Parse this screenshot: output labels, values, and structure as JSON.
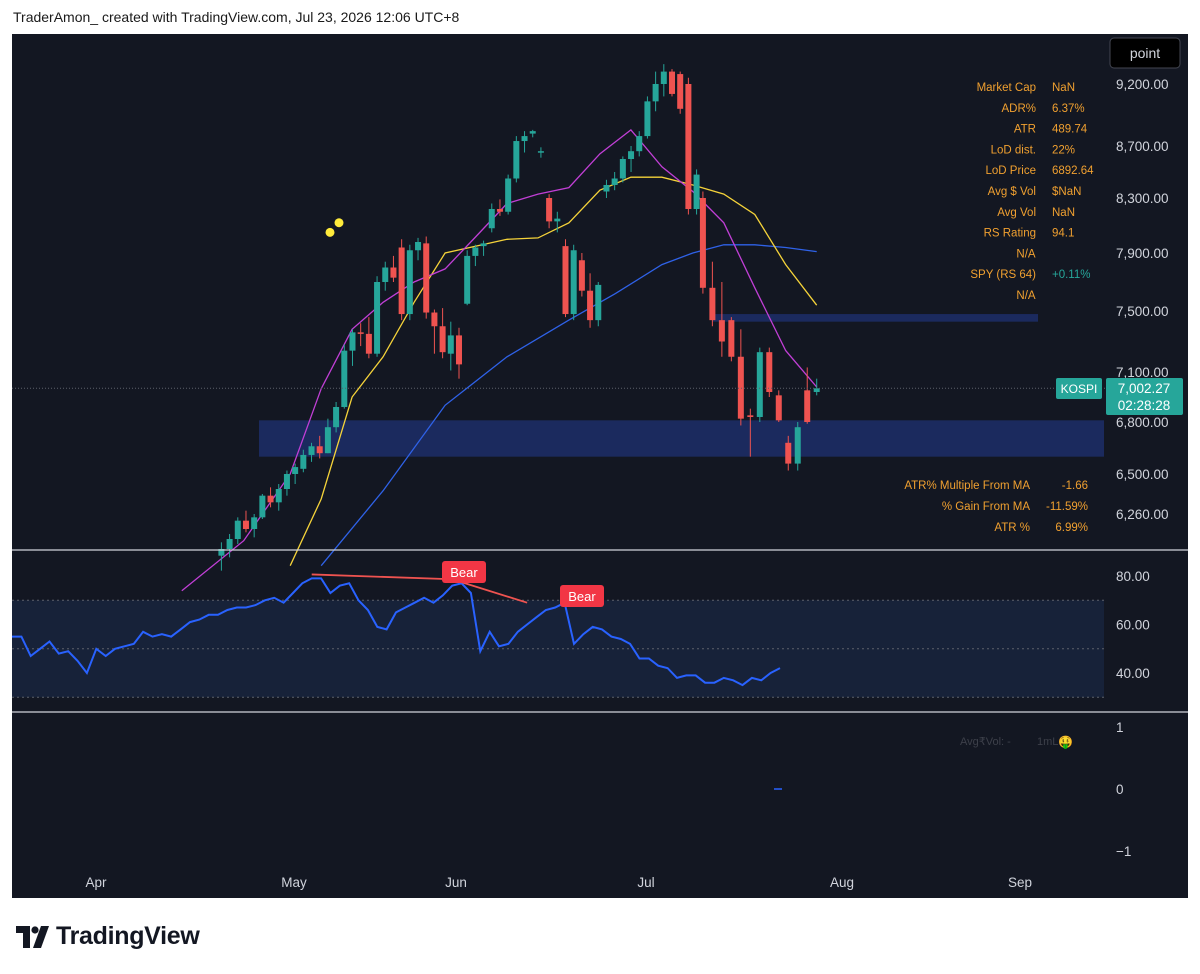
{
  "header": {
    "text": "TraderAmon_ created with TradingView.com, Jul 23, 2026 12:06 UTC+8"
  },
  "brand": {
    "logo_text": "TradingView"
  },
  "toolbar": {
    "point_label": "point"
  },
  "symbol": {
    "name": "KOSPI",
    "last_price": "7,002.27",
    "countdown": "02:28:28"
  },
  "colors": {
    "up": "#26a69a",
    "down": "#ef5350",
    "ma_fast": "#c13fd6",
    "ma_mid": "#f5d33a",
    "ma_slow": "#2f62e8",
    "rsi": "#2962ff",
    "stats": "#f0a030"
  },
  "stats_top": [
    {
      "label": "Market Cap",
      "value": "NaN"
    },
    {
      "label": "ADR%",
      "value": "6.37%"
    },
    {
      "label": "ATR",
      "value": "489.74"
    },
    {
      "label": "LoD dist.",
      "value": "22%"
    },
    {
      "label": "LoD Price",
      "value": "6892.64"
    },
    {
      "label": "Avg $ Vol",
      "value": "$NaN"
    },
    {
      "label": "Avg Vol",
      "value": "NaN"
    },
    {
      "label": "RS Rating",
      "value": "94.1"
    },
    {
      "label": "",
      "value": "N/A"
    },
    {
      "label": "SPY (RS 64)",
      "value": "+0.11%"
    },
    {
      "label": "",
      "value": "N/A"
    }
  ],
  "stats_bottom": [
    {
      "label": "ATR% Multiple From MA",
      "value": "-1.66"
    },
    {
      "label": "% Gain From MA",
      "value": "-11.59%"
    },
    {
      "label": "ATR %",
      "value": "6.99%"
    }
  ],
  "volume_legend": {
    "avg": "Avg₹Vol: -",
    "ml": "1mL:",
    "emoji": "🤑"
  },
  "chart_data": [
    {
      "type": "candlestick",
      "title": "",
      "x_axis": {
        "ticks": [
          "Apr",
          "May",
          "Jun",
          "Jul",
          "Aug",
          "Sep"
        ]
      },
      "y_axis": {
        "ticks": [
          "9,200.00",
          "8,700.00",
          "8,300.00",
          "7,900.00",
          "7,500.00",
          "7,100.00",
          "6,800.00",
          "6,500.00",
          "6,260.00"
        ]
      },
      "candles": [
        {
          "date": "2026-04-20",
          "o": 6010,
          "h": 6090,
          "l": 5920,
          "c": 6050
        },
        {
          "date": "2026-04-21",
          "o": 6050,
          "h": 6140,
          "l": 6000,
          "c": 6110
        },
        {
          "date": "2026-04-22",
          "o": 6110,
          "h": 6240,
          "l": 6080,
          "c": 6220
        },
        {
          "date": "2026-04-23",
          "o": 6220,
          "h": 6280,
          "l": 6150,
          "c": 6170
        },
        {
          "date": "2026-04-24",
          "o": 6170,
          "h": 6260,
          "l": 6120,
          "c": 6240
        },
        {
          "date": "2026-04-27",
          "o": 6240,
          "h": 6380,
          "l": 6230,
          "c": 6370
        },
        {
          "date": "2026-04-28",
          "o": 6370,
          "h": 6420,
          "l": 6300,
          "c": 6330
        },
        {
          "date": "2026-04-29",
          "o": 6330,
          "h": 6440,
          "l": 6280,
          "c": 6410
        },
        {
          "date": "2026-04-30",
          "o": 6410,
          "h": 6520,
          "l": 6370,
          "c": 6500
        },
        {
          "date": "2026-05-01",
          "o": 6500,
          "h": 6560,
          "l": 6440,
          "c": 6540
        },
        {
          "date": "2026-05-04",
          "o": 6530,
          "h": 6640,
          "l": 6510,
          "c": 6610
        },
        {
          "date": "2026-05-05",
          "o": 6610,
          "h": 6680,
          "l": 6570,
          "c": 6660
        },
        {
          "date": "2026-05-06",
          "o": 6660,
          "h": 6720,
          "l": 6590,
          "c": 6620
        },
        {
          "date": "2026-05-07",
          "o": 6620,
          "h": 6820,
          "l": 6620,
          "c": 6770
        },
        {
          "date": "2026-05-08",
          "o": 6770,
          "h": 6920,
          "l": 6740,
          "c": 6890
        },
        {
          "date": "2026-05-11",
          "o": 6890,
          "h": 7280,
          "l": 6880,
          "c": 7240
        },
        {
          "date": "2026-05-12",
          "o": 7240,
          "h": 7380,
          "l": 7140,
          "c": 7360
        },
        {
          "date": "2026-05-13",
          "o": 7360,
          "h": 7420,
          "l": 7270,
          "c": 7350
        },
        {
          "date": "2026-05-14",
          "o": 7350,
          "h": 7460,
          "l": 7190,
          "c": 7220
        },
        {
          "date": "2026-05-15",
          "o": 7220,
          "h": 7740,
          "l": 7200,
          "c": 7700
        },
        {
          "date": "2026-05-18",
          "o": 7700,
          "h": 7840,
          "l": 7640,
          "c": 7800
        },
        {
          "date": "2026-05-19",
          "o": 7800,
          "h": 7880,
          "l": 7700,
          "c": 7730
        },
        {
          "date": "2026-05-20",
          "o": 7940,
          "h": 8000,
          "l": 7440,
          "c": 7480
        },
        {
          "date": "2026-05-21",
          "o": 7480,
          "h": 7960,
          "l": 7440,
          "c": 7920
        },
        {
          "date": "2026-05-22",
          "o": 7920,
          "h": 8010,
          "l": 7850,
          "c": 7980
        },
        {
          "date": "2026-05-25",
          "o": 7970,
          "h": 8020,
          "l": 7450,
          "c": 7490
        },
        {
          "date": "2026-05-26",
          "o": 7490,
          "h": 7510,
          "l": 7220,
          "c": 7400
        },
        {
          "date": "2026-05-27",
          "o": 7400,
          "h": 7520,
          "l": 7190,
          "c": 7230
        },
        {
          "date": "2026-05-28",
          "o": 7220,
          "h": 7430,
          "l": 7110,
          "c": 7340
        },
        {
          "date": "2026-05-29",
          "o": 7340,
          "h": 7390,
          "l": 7060,
          "c": 7150
        },
        {
          "date": "2026-06-01",
          "o": 7550,
          "h": 7920,
          "l": 7540,
          "c": 7880
        },
        {
          "date": "2026-06-02",
          "o": 7880,
          "h": 7960,
          "l": 7810,
          "c": 7940
        },
        {
          "date": "2026-06-03",
          "o": 7950,
          "h": 7990,
          "l": 7880,
          "c": 7970
        },
        {
          "date": "2026-06-04",
          "o": 8080,
          "h": 8260,
          "l": 8050,
          "c": 8220
        },
        {
          "date": "2026-06-05",
          "o": 8220,
          "h": 8290,
          "l": 8170,
          "c": 8200
        },
        {
          "date": "2026-06-08",
          "o": 8200,
          "h": 8480,
          "l": 8180,
          "c": 8450
        },
        {
          "date": "2026-06-09",
          "o": 8450,
          "h": 8780,
          "l": 8420,
          "c": 8740
        },
        {
          "date": "2026-06-10",
          "o": 8740,
          "h": 8820,
          "l": 8650,
          "c": 8780
        },
        {
          "date": "2026-06-11",
          "o": 8800,
          "h": 8830,
          "l": 8770,
          "c": 8820
        },
        {
          "date": "2026-06-12",
          "o": 8650,
          "h": 8690,
          "l": 8610,
          "c": 8660
        },
        {
          "date": "2026-06-15",
          "o": 8300,
          "h": 8330,
          "l": 8080,
          "c": 8130
        },
        {
          "date": "2026-06-16",
          "o": 8130,
          "h": 8200,
          "l": 8050,
          "c": 8150
        },
        {
          "date": "2026-06-17",
          "o": 7950,
          "h": 8000,
          "l": 7460,
          "c": 7480
        },
        {
          "date": "2026-06-18",
          "o": 7480,
          "h": 7960,
          "l": 7440,
          "c": 7920
        },
        {
          "date": "2026-06-19",
          "o": 7850,
          "h": 7900,
          "l": 7600,
          "c": 7640
        },
        {
          "date": "2026-06-22",
          "o": 7640,
          "h": 7760,
          "l": 7390,
          "c": 7440
        },
        {
          "date": "2026-06-23",
          "o": 7440,
          "h": 7700,
          "l": 7400,
          "c": 7680
        },
        {
          "date": "2026-06-24",
          "o": 8350,
          "h": 8440,
          "l": 8300,
          "c": 8400
        },
        {
          "date": "2026-06-25",
          "o": 8400,
          "h": 8500,
          "l": 8360,
          "c": 8450
        },
        {
          "date": "2026-06-26",
          "o": 8450,
          "h": 8620,
          "l": 8420,
          "c": 8600
        },
        {
          "date": "2026-06-29",
          "o": 8600,
          "h": 8700,
          "l": 8500,
          "c": 8660
        },
        {
          "date": "2026-06-30",
          "o": 8660,
          "h": 8820,
          "l": 8620,
          "c": 8780
        },
        {
          "date": "2026-07-01",
          "o": 8780,
          "h": 9100,
          "l": 8760,
          "c": 9060
        },
        {
          "date": "2026-07-02",
          "o": 9060,
          "h": 9300,
          "l": 8980,
          "c": 9200
        },
        {
          "date": "2026-07-03",
          "o": 9200,
          "h": 9360,
          "l": 9100,
          "c": 9300
        },
        {
          "date": "2026-07-06",
          "o": 9300,
          "h": 9320,
          "l": 9100,
          "c": 9120
        },
        {
          "date": "2026-07-07",
          "o": 9280,
          "h": 9300,
          "l": 8960,
          "c": 9000
        },
        {
          "date": "2026-07-08",
          "o": 9200,
          "h": 9250,
          "l": 8180,
          "c": 8220
        },
        {
          "date": "2026-07-09",
          "o": 8220,
          "h": 8520,
          "l": 8180,
          "c": 8480
        },
        {
          "date": "2026-07-10",
          "o": 8500,
          "h": 8880,
          "l": 8460,
          "c": 8840
        },
        {
          "date": "2026-07-13",
          "o": 8840,
          "h": 8920,
          "l": 8380,
          "c": 8420
        },
        {
          "date": "2026-07-14",
          "o": 8420,
          "h": 8460,
          "l": 8240,
          "c": 8290
        },
        {
          "date": "2026-07-15",
          "o": 8290,
          "h": 8400,
          "l": 8200,
          "c": 8380
        },
        {
          "date": "2026-07-16",
          "o": 8380,
          "h": 8460,
          "l": 8280,
          "c": 8310
        },
        {
          "date": "2026-07-17",
          "o": 8310,
          "h": 8480,
          "l": 8260,
          "c": 8460
        },
        {
          "date": "2026-07-20",
          "o": 8460,
          "h": 8540,
          "l": 8320,
          "c": 8360
        },
        {
          "date": "2026-07-21",
          "o": 8200,
          "h": 8240,
          "l": 7900,
          "c": 7920
        },
        {
          "date": "2026-07-22",
          "o": 7700,
          "h": 7900,
          "l": 7600,
          "c": 7870
        },
        {
          "date": "2026-07-23",
          "o": 7860,
          "h": 7880,
          "l": 7300,
          "c": 7360
        }
      ],
      "candles_recent": [
        {
          "date": "2026-07-10",
          "o": 8300,
          "h": 8350,
          "l": 7620,
          "c": 7660
        },
        {
          "date": "2026-07-13",
          "o": 7660,
          "h": 7840,
          "l": 7400,
          "c": 7440
        },
        {
          "date": "2026-07-14",
          "o": 7440,
          "h": 7700,
          "l": 7200,
          "c": 7300
        },
        {
          "date": "2026-07-15",
          "o": 7440,
          "h": 7460,
          "l": 7170,
          "c": 7200
        },
        {
          "date": "2026-07-16",
          "o": 7200,
          "h": 7380,
          "l": 6780,
          "c": 6820
        },
        {
          "date": "2026-07-17",
          "o": 6840,
          "h": 6880,
          "l": 6600,
          "c": 6830
        },
        {
          "date": "2026-07-20",
          "o": 6830,
          "h": 7260,
          "l": 6800,
          "c": 7230
        },
        {
          "date": "2026-07-21",
          "o": 7230,
          "h": 7260,
          "l": 6950,
          "c": 6980
        },
        {
          "date": "2026-07-22",
          "o": 6960,
          "h": 6990,
          "l": 6800,
          "c": 6810
        },
        {
          "date": "2026-07-23",
          "o": 6680,
          "h": 6720,
          "l": 6520,
          "c": 6560
        },
        {
          "date": "2026-07-24",
          "o": 6560,
          "h": 6800,
          "l": 6520,
          "c": 6770
        },
        {
          "date": "2026-07-27",
          "o": 6990,
          "h": 7130,
          "l": 6790,
          "c": 6800
        },
        {
          "date": "2026-07-28",
          "o": 6980,
          "h": 7060,
          "l": 6960,
          "c": 7002.27
        }
      ],
      "moving_averages": {
        "fast": [
          [
            0,
            5800
          ],
          [
            8,
            6100
          ],
          [
            14,
            6500
          ],
          [
            18,
            7000
          ],
          [
            22,
            7380
          ],
          [
            26,
            7560
          ],
          [
            30,
            7700
          ],
          [
            34,
            7790
          ],
          [
            38,
            8020
          ],
          [
            42,
            8260
          ],
          [
            46,
            8330
          ],
          [
            50,
            8380
          ],
          [
            54,
            8640
          ],
          [
            58,
            8830
          ],
          [
            62,
            8540
          ],
          [
            66,
            8350
          ],
          [
            70,
            8120
          ],
          [
            74,
            7660
          ],
          [
            78,
            7240
          ],
          [
            82,
            7010
          ]
        ],
        "mid": [
          [
            14,
            5950
          ],
          [
            18,
            6350
          ],
          [
            22,
            6950
          ],
          [
            26,
            7200
          ],
          [
            30,
            7560
          ],
          [
            34,
            7900
          ],
          [
            38,
            7950
          ],
          [
            42,
            8000
          ],
          [
            46,
            8010
          ],
          [
            50,
            8120
          ],
          [
            54,
            8360
          ],
          [
            58,
            8460
          ],
          [
            62,
            8460
          ],
          [
            66,
            8400
          ],
          [
            70,
            8330
          ],
          [
            74,
            8180
          ],
          [
            78,
            7820
          ],
          [
            82,
            7540
          ]
        ],
        "slow": [
          [
            18,
            5950
          ],
          [
            26,
            6400
          ],
          [
            34,
            6900
          ],
          [
            42,
            7200
          ],
          [
            50,
            7440
          ],
          [
            56,
            7620
          ],
          [
            62,
            7820
          ],
          [
            66,
            7900
          ],
          [
            70,
            7960
          ],
          [
            74,
            7960
          ],
          [
            78,
            7940
          ],
          [
            82,
            7910
          ]
        ]
      },
      "zones": [
        {
          "from": 6600,
          "to": 6810,
          "label": ""
        },
        {
          "from": 7430,
          "to": 7480,
          "label": ""
        }
      ],
      "dots": [
        {
          "v": 8050
        },
        {
          "v": 8120
        }
      ]
    },
    {
      "type": "line",
      "title": "",
      "y_axis": {
        "ticks": [
          "80.00",
          "60.00",
          "40.00"
        ]
      },
      "bands": {
        "upper": 70,
        "mid": 50,
        "lower": 30
      },
      "values": [
        55,
        55,
        47,
        50,
        53,
        48,
        49,
        45,
        40,
        50,
        47,
        50,
        51,
        52,
        57,
        55,
        56,
        55,
        58,
        61,
        62,
        64,
        64,
        66,
        67,
        67,
        68,
        70,
        71,
        69,
        73,
        77,
        79,
        79,
        73,
        76,
        77,
        70,
        66,
        59,
        58,
        65,
        67,
        69,
        71,
        69,
        72,
        76,
        77,
        73,
        49,
        57,
        51,
        52,
        57,
        60,
        63,
        66,
        67,
        69,
        52,
        56,
        59,
        58,
        55,
        54,
        52,
        46,
        46,
        43,
        42,
        38,
        39,
        39,
        36,
        36,
        38,
        37,
        35,
        38,
        37,
        40,
        42
      ]
    },
    {
      "type": "bar",
      "title": "",
      "y_axis": {
        "ticks": [
          "1",
          "0",
          "−1"
        ]
      },
      "values": [
        0
      ]
    }
  ],
  "divergence_labels": [
    "Bear",
    "Bear"
  ]
}
